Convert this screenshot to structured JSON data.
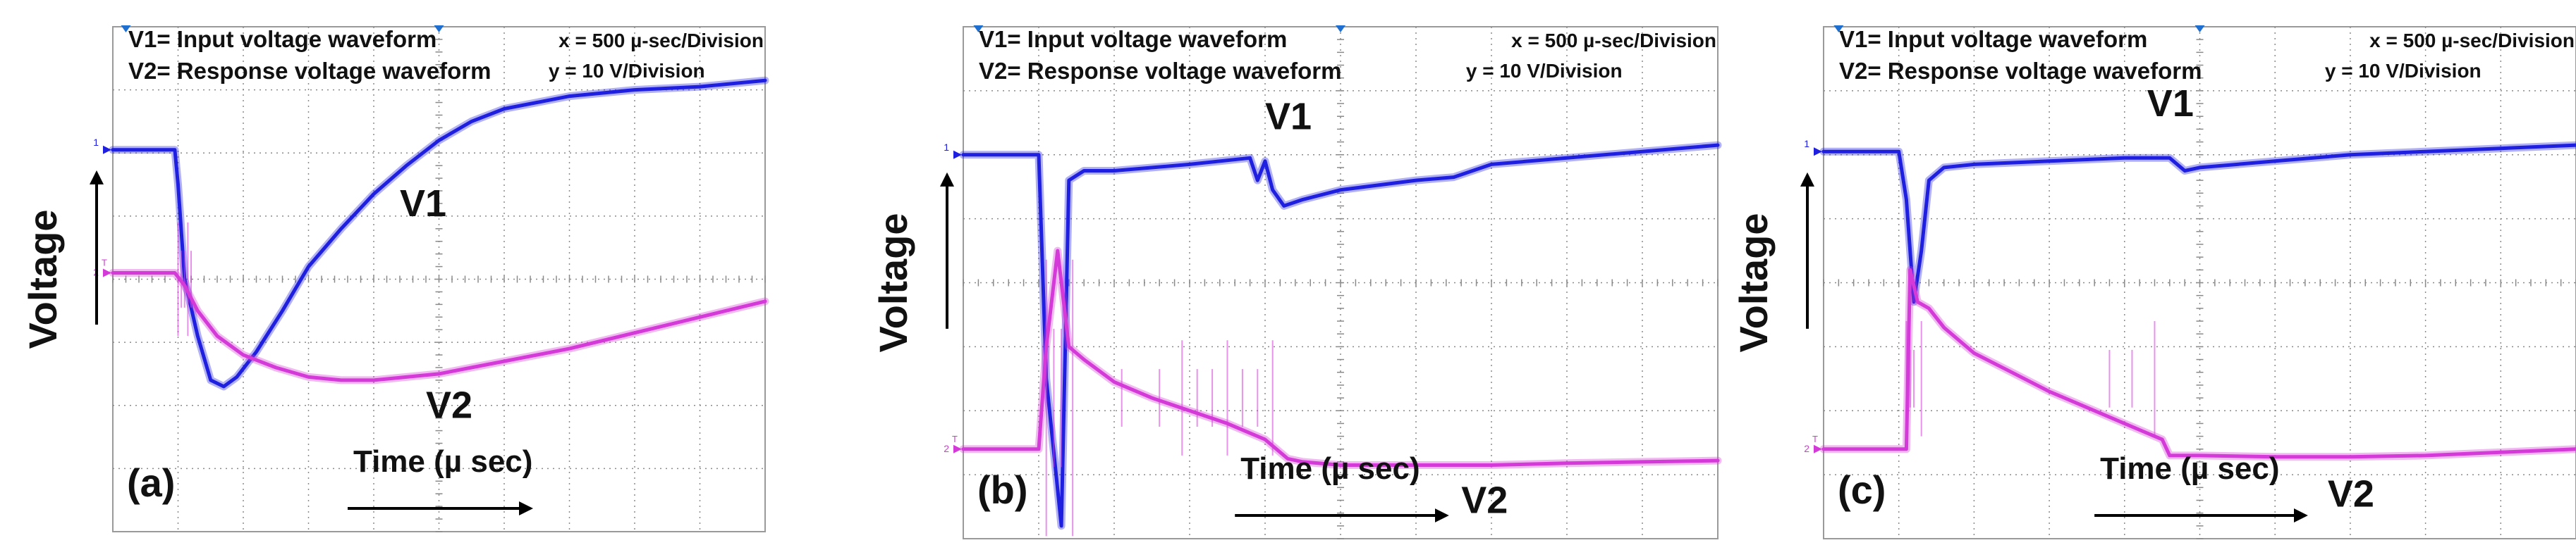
{
  "figure": {
    "panels": [
      {
        "id": "a",
        "label": "(a)",
        "legend_v1": "V1= Input voltage waveform",
        "legend_v2": "V2= Response voltage waveform",
        "scale_x": "x = 500 µ-sec/Division",
        "scale_y": "y = 10 V/Division",
        "ylabel": "Voltage",
        "xlabel": "Time (µ sec)",
        "v1_label": "V1",
        "v2_label": "V2",
        "ch1_marker": "1",
        "ch2_marker": "2",
        "trigger_marker": "T"
      },
      {
        "id": "b",
        "label": "(b)",
        "legend_v1": "V1= Input voltage waveform",
        "legend_v2": "V2= Response voltage waveform",
        "scale_x": "x = 500 µ-sec/Division",
        "scale_y": "y = 10 V/Division",
        "ylabel": "Voltage",
        "xlabel": "Time (µ sec)",
        "v1_label": "V1",
        "v2_label": "V2",
        "ch1_marker": "1",
        "ch2_marker": "2",
        "trigger_marker": "T"
      },
      {
        "id": "c",
        "label": "(c)",
        "legend_v1": "V1= Input voltage waveform",
        "legend_v2": "V2= Response voltage waveform",
        "scale_x": "x = 500 µ-sec/Division",
        "scale_y": "y = 10 V/Division",
        "ylabel": "Voltage",
        "xlabel": "Time (µ sec)",
        "v1_label": "V1",
        "v2_label": "V2",
        "ch1_marker": "1",
        "ch2_marker": "2",
        "trigger_marker": "T"
      }
    ]
  },
  "colors": {
    "v1": "#1f1fe0",
    "v2": "#d43ad8",
    "grid": "#8a8a8a",
    "text": "#111111"
  },
  "chart_data": [
    {
      "type": "line",
      "panel": "a",
      "x_units": "divisions",
      "y_units": "divisions",
      "xlim": [
        0,
        10
      ],
      "ylim": [
        -4,
        4
      ],
      "series": [
        {
          "name": "V1",
          "x": [
            0,
            0.95,
            1.0,
            1.1,
            1.3,
            1.5,
            1.7,
            1.9,
            2.2,
            2.6,
            3.0,
            3.5,
            4.0,
            4.5,
            5.0,
            5.5,
            6.0,
            7.0,
            8.0,
            9.0,
            10.0
          ],
          "y": [
            2.05,
            2.05,
            1.5,
            0.0,
            -0.9,
            -1.6,
            -1.7,
            -1.55,
            -1.15,
            -0.5,
            0.2,
            0.8,
            1.35,
            1.8,
            2.2,
            2.5,
            2.7,
            2.9,
            3.0,
            3.05,
            3.15
          ]
        },
        {
          "name": "V2",
          "x": [
            0,
            0.95,
            1.1,
            1.3,
            1.6,
            2.0,
            2.5,
            3.0,
            3.5,
            4.0,
            5.0,
            6.0,
            7.0,
            8.0,
            9.0,
            10.0
          ],
          "y": [
            0.1,
            0.1,
            -0.1,
            -0.5,
            -0.9,
            -1.2,
            -1.4,
            -1.55,
            -1.6,
            -1.6,
            -1.5,
            -1.3,
            -1.1,
            -0.85,
            -0.6,
            -0.35
          ]
        }
      ]
    },
    {
      "type": "line",
      "panel": "b",
      "x_units": "divisions",
      "y_units": "divisions",
      "xlim": [
        0,
        10
      ],
      "ylim": [
        -4,
        4
      ],
      "series": [
        {
          "name": "V1",
          "x": [
            0,
            1.0,
            1.1,
            1.3,
            1.4,
            1.6,
            2.0,
            3.0,
            3.8,
            3.9,
            4.0,
            4.1,
            4.25,
            4.5,
            5.0,
            6.0,
            6.5,
            7.0,
            8.0,
            9.0,
            10.0
          ],
          "y": [
            2.0,
            2.0,
            -1.5,
            -3.8,
            1.6,
            1.75,
            1.75,
            1.85,
            1.95,
            1.6,
            1.9,
            1.45,
            1.2,
            1.3,
            1.45,
            1.6,
            1.65,
            1.85,
            1.95,
            2.05,
            2.15
          ]
        },
        {
          "name": "V2",
          "x": [
            0,
            1.0,
            1.1,
            1.25,
            1.4,
            1.6,
            2.0,
            2.5,
            3.0,
            3.5,
            4.0,
            4.3,
            4.5,
            5.0,
            6.0,
            7.0,
            8.0,
            9.0,
            10.0
          ],
          "y": [
            -2.6,
            -2.6,
            -1.0,
            0.5,
            -1.0,
            -1.2,
            -1.55,
            -1.8,
            -2.0,
            -2.2,
            -2.45,
            -2.75,
            -2.8,
            -2.85,
            -2.85,
            -2.85,
            -2.82,
            -2.8,
            -2.78
          ]
        }
      ]
    },
    {
      "type": "line",
      "panel": "c",
      "x_units": "divisions",
      "y_units": "divisions",
      "xlim": [
        0,
        10
      ],
      "ylim": [
        -4,
        4
      ],
      "series": [
        {
          "name": "V1",
          "x": [
            0,
            1.0,
            1.1,
            1.2,
            1.3,
            1.4,
            1.6,
            2.0,
            3.0,
            4.0,
            4.6,
            4.8,
            5.0,
            6.0,
            7.0,
            8.0,
            9.0,
            10.0
          ],
          "y": [
            2.05,
            2.05,
            1.3,
            -0.3,
            0.5,
            1.6,
            1.8,
            1.85,
            1.9,
            1.95,
            1.95,
            1.75,
            1.8,
            1.9,
            2.0,
            2.05,
            2.1,
            2.15
          ]
        },
        {
          "name": "V2",
          "x": [
            0,
            1.1,
            1.15,
            1.25,
            1.4,
            1.6,
            2.0,
            2.5,
            3.0,
            3.5,
            4.0,
            4.5,
            4.6,
            5.0,
            6.0,
            7.0,
            8.0,
            9.0,
            10.0
          ],
          "y": [
            -2.6,
            -2.6,
            0.2,
            -0.3,
            -0.4,
            -0.7,
            -1.1,
            -1.4,
            -1.7,
            -1.95,
            -2.2,
            -2.45,
            -2.7,
            -2.7,
            -2.72,
            -2.72,
            -2.7,
            -2.65,
            -2.6
          ]
        }
      ]
    }
  ]
}
